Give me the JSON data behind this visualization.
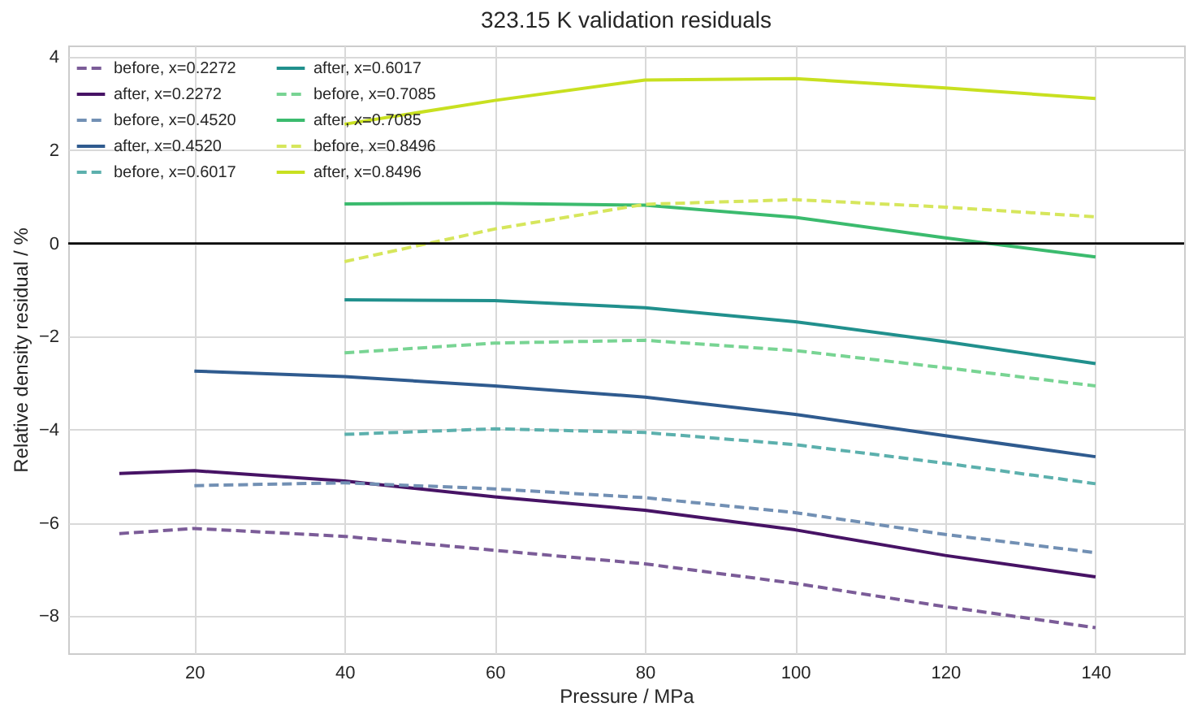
{
  "chart_data": {
    "type": "line",
    "title": "323.15 K validation residuals",
    "xlabel": "Pressure / MPa",
    "ylabel": "Relative density residual / %",
    "xlim": [
      3.2,
      151.8
    ],
    "ylim": [
      -8.8,
      4.25
    ],
    "xticks": [
      20,
      40,
      60,
      80,
      100,
      120,
      140
    ],
    "yticks": [
      -8,
      -6,
      -4,
      -2,
      0,
      2,
      4
    ],
    "grid": true,
    "legend": "top left",
    "ref_lines": [
      {
        "axis": "y",
        "value": 0,
        "color": "#000000"
      }
    ],
    "series": [
      {
        "name": "before, x=0.2272",
        "color": "#7b5c98",
        "line_style": "dashed",
        "x": [
          10,
          20,
          40,
          60,
          80,
          100,
          120,
          140
        ],
        "values": [
          -6.23,
          -6.12,
          -6.29,
          -6.59,
          -6.88,
          -7.3,
          -7.8,
          -8.25
        ]
      },
      {
        "name": "after, x=0.2272",
        "color": "#471365",
        "line_style": "solid",
        "x": [
          10,
          20,
          40,
          60,
          80,
          100,
          120,
          140
        ],
        "values": [
          -4.94,
          -4.88,
          -5.1,
          -5.44,
          -5.73,
          -6.15,
          -6.7,
          -7.16
        ]
      },
      {
        "name": "before, x=0.4520",
        "color": "#7290b4",
        "line_style": "dashed",
        "x": [
          20,
          40,
          60,
          80,
          100,
          120,
          140
        ],
        "values": [
          -5.2,
          -5.14,
          -5.27,
          -5.46,
          -5.78,
          -6.25,
          -6.64
        ]
      },
      {
        "name": "after, x=0.4520",
        "color": "#2f5b8f",
        "line_style": "solid",
        "x": [
          20,
          40,
          60,
          80,
          100,
          120,
          140
        ],
        "values": [
          -2.74,
          -2.86,
          -3.06,
          -3.3,
          -3.67,
          -4.13,
          -4.58
        ]
      },
      {
        "name": "before, x=0.6017",
        "color": "#5cb0ad",
        "line_style": "dashed",
        "x": [
          40,
          60,
          80,
          100,
          120,
          140
        ],
        "values": [
          -4.1,
          -3.98,
          -4.06,
          -4.32,
          -4.72,
          -5.16
        ]
      },
      {
        "name": "after, x=0.6017",
        "color": "#21908d",
        "line_style": "solid",
        "x": [
          40,
          60,
          80,
          100,
          120,
          140
        ],
        "values": [
          -1.21,
          -1.23,
          -1.38,
          -1.68,
          -2.11,
          -2.58
        ]
      },
      {
        "name": "before, x=0.7085",
        "color": "#78d493",
        "line_style": "dashed",
        "x": [
          40,
          60,
          80,
          100,
          120,
          140
        ],
        "values": [
          -2.35,
          -2.14,
          -2.08,
          -2.3,
          -2.67,
          -3.06
        ]
      },
      {
        "name": "after, x=0.7085",
        "color": "#3bbb6e",
        "line_style": "solid",
        "x": [
          40,
          60,
          80,
          100,
          120,
          140
        ],
        "values": [
          0.85,
          0.86,
          0.82,
          0.56,
          0.12,
          -0.29
        ]
      },
      {
        "name": "before, x=0.8496",
        "color": "#d6e65c",
        "line_style": "dashed",
        "x": [
          40,
          60,
          80,
          100,
          120,
          140
        ],
        "values": [
          -0.39,
          0.31,
          0.84,
          0.94,
          0.78,
          0.57
        ]
      },
      {
        "name": "after, x=0.8496",
        "color": "#c8e020",
        "line_style": "solid",
        "x": [
          40,
          60,
          80,
          100,
          120,
          140
        ],
        "values": [
          2.56,
          3.07,
          3.51,
          3.54,
          3.34,
          3.11
        ]
      }
    ]
  }
}
